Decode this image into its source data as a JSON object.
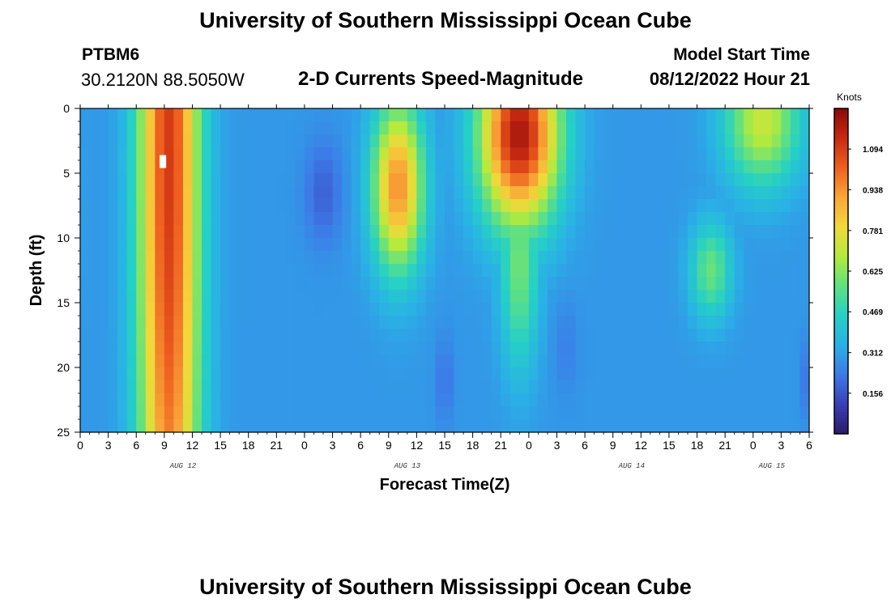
{
  "header": {
    "title": "University of Southern Mississippi Ocean Cube",
    "station": "PTBM6",
    "coordinates": "30.2120N  88.5050W",
    "subtitle": "2-D Currents Speed-Magnitude",
    "model_start_label": "Model Start Time",
    "model_start_value": "08/12/2022 Hour 21"
  },
  "footer": {
    "title": "University of Southern Mississippi Ocean Cube"
  },
  "colors": {
    "colormap": [
      "#2c1a66",
      "#3a3fb8",
      "#3d7ae8",
      "#2ab0e6",
      "#25d0c6",
      "#5fe083",
      "#b4ea3c",
      "#f2d83a",
      "#f9a638",
      "#ee6020",
      "#c82a10",
      "#8b0a0a"
    ]
  },
  "chart_data": {
    "type": "heatmap",
    "xlabel": "Forecast Time(Z)",
    "ylabel": "Depth (ft)",
    "colorbar_label": "Knots",
    "x_range": [
      0,
      78
    ],
    "y_range": [
      0,
      25
    ],
    "x_ticks": [
      0,
      3,
      6,
      9,
      12,
      15,
      18,
      21,
      24,
      27,
      30,
      33,
      36,
      39,
      42,
      45,
      48,
      51,
      54,
      57,
      60,
      63,
      66,
      69,
      72,
      75,
      78
    ],
    "x_tick_labels": [
      "0",
      "3",
      "6",
      "9",
      "12",
      "15",
      "18",
      "21",
      "0",
      "3",
      "6",
      "9",
      "12",
      "15",
      "18",
      "21",
      "0",
      "3",
      "6",
      "9",
      "12",
      "15",
      "18",
      "21",
      "0",
      "3",
      "6"
    ],
    "y_ticks": [
      0,
      5,
      10,
      15,
      20,
      25
    ],
    "y_tick_labels": [
      "0",
      "5",
      "10",
      "15",
      "20",
      "25"
    ],
    "date_labels": [
      {
        "text": "AUG 12",
        "x": 11
      },
      {
        "text": "AUG 13",
        "x": 35
      },
      {
        "text": "AUG 14",
        "x": 59
      },
      {
        "text": "AUG 15",
        "x": 74
      }
    ],
    "colorbar_ticks": [
      0.156,
      0.312,
      0.469,
      0.625,
      0.781,
      0.938,
      1.094
    ],
    "colorbar_range": [
      0,
      1.25
    ],
    "speed_features": [
      {
        "x": 9.5,
        "depth": 4,
        "sx": 3.2,
        "sdepth": 50,
        "value": 1.1
      },
      {
        "x": 9.5,
        "depth": 14,
        "sx": 2.8,
        "sdepth": 16,
        "value": 0.75
      },
      {
        "x": 34,
        "depth": 6,
        "sx": 2.7,
        "sdepth": 6.5,
        "value": 0.95
      },
      {
        "x": 47,
        "depth": 2,
        "sx": 4.2,
        "sdepth": 7,
        "value": 1.2
      },
      {
        "x": 47,
        "depth": 12,
        "sx": 2.0,
        "sdepth": 8,
        "value": 0.6
      },
      {
        "x": 73,
        "depth": 1,
        "sx": 4.0,
        "sdepth": 5,
        "value": 0.72
      },
      {
        "x": 67.5,
        "depth": 12.5,
        "sx": 2.2,
        "sdepth": 3.8,
        "value": 0.58
      },
      {
        "x": 0.5,
        "depth": 8,
        "sx": 0.9,
        "sdepth": 9,
        "value": 0.3
      }
    ],
    "background_speed": 0.29,
    "minima": [
      {
        "x": 26,
        "depth": 6.5,
        "sx": 2.0,
        "sdepth": 4,
        "value": 0.18
      },
      {
        "x": 39,
        "depth": 21,
        "sx": 1.0,
        "sdepth": 3.5,
        "value": 0.22
      },
      {
        "x": 52,
        "depth": 18.5,
        "sx": 1.3,
        "sdepth": 3.5,
        "value": 0.24
      },
      {
        "x": 78,
        "depth": 21,
        "sx": 0.8,
        "sdepth": 3,
        "value": 0.2
      }
    ]
  }
}
